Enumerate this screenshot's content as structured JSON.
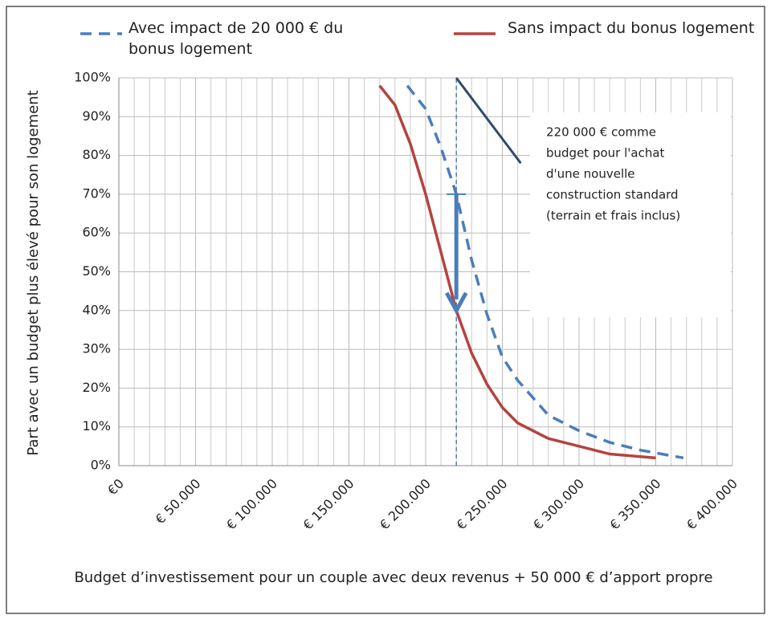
{
  "chart_data": {
    "type": "line",
    "x_label": "Budget d’investissement pour un couple avec deux revenus + 50 000 € d’apport propre",
    "y_label": "Part avec un budget plus élevé pour son logement",
    "xlim": [
      0,
      400000
    ],
    "ylim": [
      0,
      100
    ],
    "xticks": [
      {
        "value": 0,
        "label": "€0"
      },
      {
        "value": 50000,
        "label": "€ 50.000"
      },
      {
        "value": 100000,
        "label": "€ 100.000"
      },
      {
        "value": 150000,
        "label": "€ 150.000"
      },
      {
        "value": 200000,
        "label": "€ 200.000"
      },
      {
        "value": 250000,
        "label": "€ 250.000"
      },
      {
        "value": 300000,
        "label": "€ 300.000"
      },
      {
        "value": 350000,
        "label": "€ 350.000"
      },
      {
        "value": 400000,
        "label": "€ 400.000"
      }
    ],
    "yticks": [
      {
        "value": 0,
        "label": "0%"
      },
      {
        "value": 10,
        "label": "10%"
      },
      {
        "value": 20,
        "label": "20%"
      },
      {
        "value": 30,
        "label": "30%"
      },
      {
        "value": 40,
        "label": "40%"
      },
      {
        "value": 50,
        "label": "50%"
      },
      {
        "value": 60,
        "label": "60%"
      },
      {
        "value": 70,
        "label": "70%"
      },
      {
        "value": 80,
        "label": "80%"
      },
      {
        "value": 90,
        "label": "90%"
      },
      {
        "value": 100,
        "label": "100%"
      }
    ],
    "minor_x_step": 10000,
    "grid": true,
    "series": [
      {
        "name": "Avec impact de 20 000 € du bonus logement",
        "color": "#4a7ebb",
        "dashed": true,
        "x": [
          188000,
          200000,
          210000,
          220000,
          230000,
          240000,
          250000,
          260000,
          280000,
          300000,
          320000,
          340000,
          368000
        ],
        "values": [
          98,
          92,
          82,
          70,
          53,
          39,
          28,
          22,
          13,
          9,
          6,
          4,
          2
        ]
      },
      {
        "name": "Sans impact du bonus logement",
        "color": "#b5433f",
        "dashed": false,
        "x": [
          170000,
          180000,
          190000,
          200000,
          210000,
          220000,
          230000,
          240000,
          250000,
          260000,
          280000,
          300000,
          320000,
          350000
        ],
        "values": [
          98,
          93,
          83,
          70,
          55,
          40,
          29,
          21,
          15,
          11,
          7,
          5,
          3,
          2
        ]
      }
    ],
    "reference_x": 220000,
    "arrow": {
      "x": 220000,
      "from": 70,
      "to": 40,
      "color": "#4a7ebb"
    },
    "pointer": {
      "x": [
        220000,
        262000
      ],
      "y": [
        100,
        78
      ],
      "color": "#2e4a6e"
    },
    "annotation": [
      "220 000 € comme",
      "budget pour l'achat",
      "d'une nouvelle",
      "construction standard",
      "(terrain et frais inclus)"
    ]
  }
}
